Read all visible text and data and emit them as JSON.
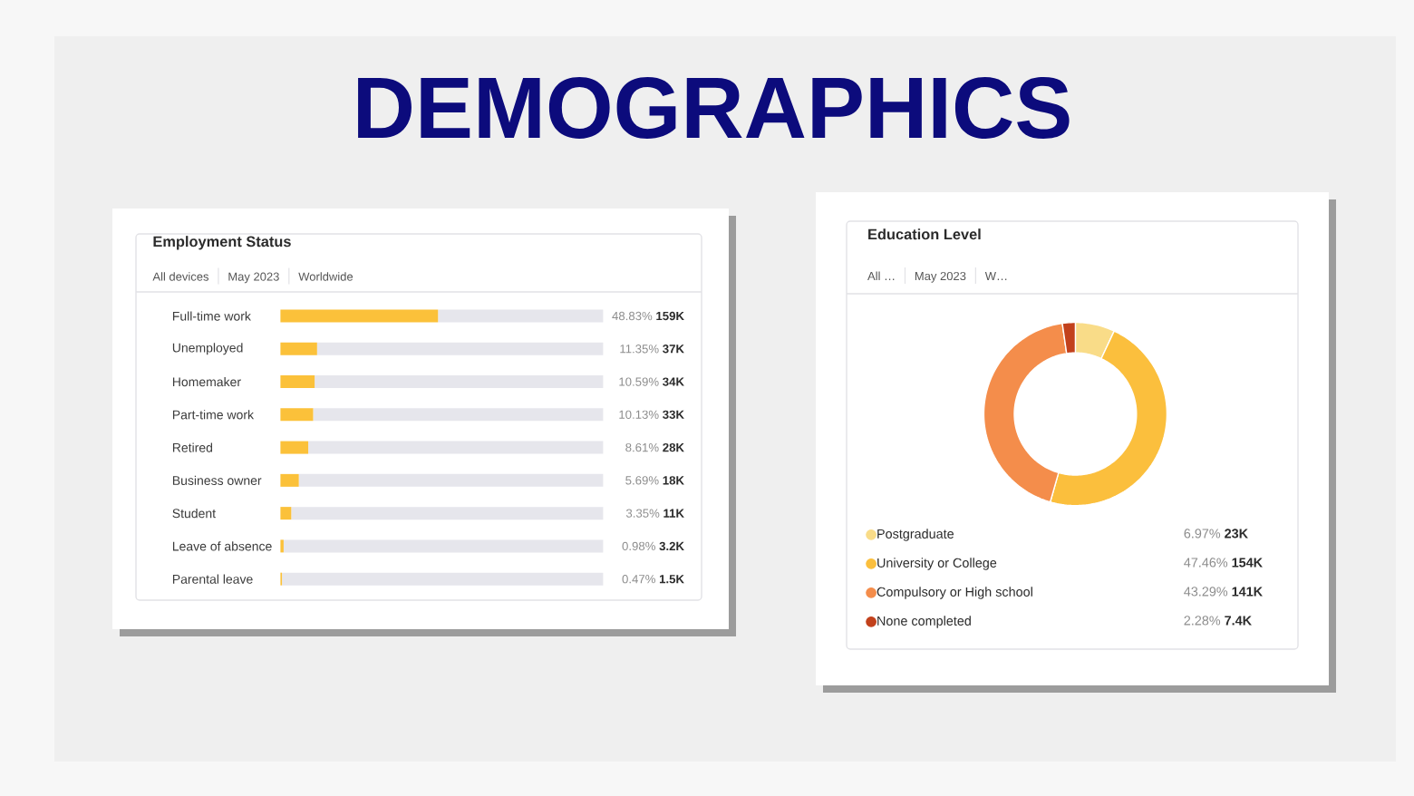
{
  "chart_data": [
    {
      "type": "other",
      "title": "DEMOGRAPHICS"
    },
    {
      "type": "bar",
      "orientation": "horizontal",
      "stacked": true,
      "title": "Employment Status",
      "annotations": [
        "All devices",
        "May 2023",
        "Worldwide"
      ],
      "categories": [
        "Full-time work",
        "Unemployed",
        "Homemaker",
        "Part-time work",
        "Retired",
        "Business owner",
        "Student",
        "Leave of absence",
        "Parental leave"
      ],
      "series": [
        {
          "color": "#fbc13a",
          "values": [
            48.83,
            11.35,
            10.59,
            10.13,
            8.61,
            5.69,
            3.35,
            0.98,
            0.47
          ],
          "value_labels": [
            "48.83% **159K**",
            "11.35% **37K**",
            "10.59% **34K**",
            "10.13% **33K**",
            "8.61% **28K**",
            "5.69% **18K**",
            "3.35% **11K**",
            "0.98% **3.2K**",
            "0.47% **1.5K**"
          ]
        },
        {
          "color": "#e6e6ec",
          "values": [
            51.17,
            88.65,
            89.41,
            89.87,
            91.39,
            94.31,
            96.65,
            99.02,
            99.53
          ]
        }
      ],
      "xlim": [
        0,
        100
      ],
      "tick_labels": "y"
    },
    {
      "type": "donut",
      "title": "Education Level",
      "annotations": [
        "All …",
        "May 2023",
        "W…"
      ],
      "categories": [
        "Postgraduate",
        "University or College",
        "Compulsory or High school",
        "None completed"
      ],
      "values": [
        6.97,
        47.46,
        43.29,
        2.28
      ],
      "colors": [
        "#f9dc88",
        "#fbbf3d",
        "#f48d4b",
        "#c2411c"
      ],
      "value_labels": [
        "6.97% **23K**",
        "47.46% **154K**",
        "43.29% **141K**",
        "2.28% **7.4K**"
      ],
      "legend": "bottom"
    }
  ]
}
